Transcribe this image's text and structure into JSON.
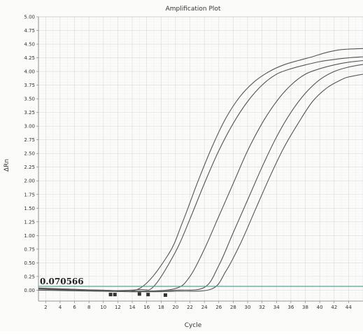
{
  "chart_data": {
    "type": "line",
    "title": "Amplification Plot",
    "xlabel": "Cycle",
    "ylabel": "ΔRn",
    "xlim": [
      1,
      46
    ],
    "ylim": [
      -0.2,
      5.0
    ],
    "grid": true,
    "x_ticks": [
      2,
      4,
      6,
      8,
      10,
      12,
      14,
      16,
      18,
      20,
      22,
      24,
      26,
      28,
      30,
      32,
      34,
      36,
      38,
      40,
      42,
      44
    ],
    "y_ticks": [
      "0.00",
      "0.25",
      "0.50",
      "0.75",
      "1.00",
      "1.25",
      "1.50",
      "1.75",
      "2.00",
      "2.25",
      "2.50",
      "2.75",
      "3.00",
      "3.25",
      "3.50",
      "3.75",
      "4.00",
      "4.25",
      "4.50",
      "4.75",
      "5.00"
    ],
    "threshold": {
      "label": "0.070566",
      "value": 0.07,
      "color": "#4a9a8a"
    },
    "line_color": "#555555",
    "series": [
      {
        "x": [
          1,
          5,
          10,
          15,
          19,
          21,
          23,
          25,
          27,
          29,
          31,
          33,
          35,
          37,
          39,
          41,
          43,
          46
        ],
        "y": [
          0.03,
          0.02,
          0.0,
          0.03,
          0.65,
          1.25,
          1.95,
          2.6,
          3.15,
          3.55,
          3.82,
          4.0,
          4.12,
          4.2,
          4.27,
          4.35,
          4.4,
          4.42
        ]
      },
      {
        "x": [
          1,
          5,
          10,
          15,
          17,
          20,
          22,
          24,
          26,
          28,
          30,
          32,
          34,
          36,
          38,
          40,
          42,
          44,
          46
        ],
        "y": [
          0.04,
          0.02,
          -0.01,
          0.01,
          0.07,
          0.7,
          1.3,
          1.95,
          2.55,
          3.05,
          3.45,
          3.75,
          3.95,
          4.05,
          4.12,
          4.18,
          4.22,
          4.25,
          4.27
        ]
      },
      {
        "x": [
          1,
          5,
          10,
          15,
          20,
          22,
          24,
          26,
          28,
          30,
          32,
          34,
          36,
          38,
          40,
          42,
          44,
          46
        ],
        "y": [
          0.03,
          0.01,
          0.0,
          -0.02,
          0.03,
          0.25,
          0.75,
          1.35,
          1.95,
          2.55,
          3.05,
          3.45,
          3.75,
          3.95,
          4.05,
          4.12,
          4.17,
          4.2
        ]
      },
      {
        "x": [
          1,
          5,
          10,
          15,
          20,
          24,
          26,
          28,
          30,
          32,
          34,
          36,
          38,
          40,
          42,
          44,
          46
        ],
        "y": [
          0.02,
          0.0,
          -0.02,
          -0.02,
          0.0,
          0.05,
          0.45,
          1.05,
          1.65,
          2.25,
          2.8,
          3.25,
          3.6,
          3.85,
          4.0,
          4.08,
          4.13
        ]
      },
      {
        "x": [
          1,
          5,
          10,
          15,
          20,
          25,
          27,
          29,
          31,
          33,
          35,
          37,
          39,
          41,
          43,
          44,
          46
        ],
        "y": [
          0.0,
          -0.01,
          -0.02,
          -0.03,
          -0.02,
          0.02,
          0.35,
          0.85,
          1.45,
          2.05,
          2.6,
          3.05,
          3.45,
          3.7,
          3.85,
          3.9,
          3.95
        ]
      }
    ],
    "markers": {
      "x": [
        11,
        11.6,
        15,
        16.2,
        18.6
      ],
      "y": [
        -0.08,
        -0.08,
        -0.07,
        -0.08,
        -0.09
      ]
    }
  }
}
